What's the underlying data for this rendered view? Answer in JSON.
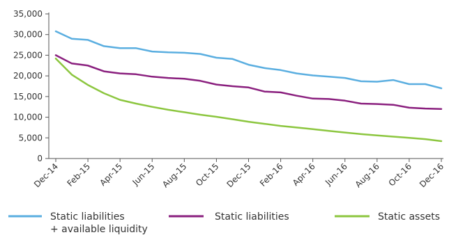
{
  "chart_data": {
    "type": "line",
    "title": "",
    "xlabel": "",
    "ylabel": "",
    "ylim": [
      0,
      35000
    ],
    "yticks": [
      0,
      5000,
      10000,
      15000,
      20000,
      25000,
      30000,
      35000
    ],
    "ytick_labels": [
      "0",
      "5,000",
      "10,000",
      "15,000",
      "20,000",
      "25,000",
      "30,000",
      "35,000"
    ],
    "x": [
      "Dec-14",
      "Jan-15",
      "Feb-15",
      "Mar-15",
      "Apr-15",
      "May-15",
      "Jun-15",
      "Jul-15",
      "Aug-15",
      "Sep-15",
      "Oct-15",
      "Nov-15",
      "Dec-15",
      "Jan-16",
      "Feb-16",
      "Mar-16",
      "Apr-16",
      "May-16",
      "Jun-16",
      "Jul-16",
      "Aug-16",
      "Sep-16",
      "Oct-16",
      "Nov-16",
      "Dec-16"
    ],
    "xtick_labels": [
      "Dec-14",
      "Feb-15",
      "Apr-15",
      "Jun-15",
      "Aug-15",
      "Oct-15",
      "Dec-15",
      "Feb-16",
      "Apr-16",
      "Jun-16",
      "Aug-16",
      "Oct-16",
      "Dec-16"
    ],
    "grid": false,
    "legend_position": "bottom",
    "series": [
      {
        "name": "Static liabilities\n+ available liquidity",
        "color": "#5aaee0",
        "values": [
          30800,
          29000,
          28700,
          27200,
          26700,
          26700,
          25900,
          25700,
          25600,
          25300,
          24400,
          24100,
          22700,
          21900,
          21400,
          20600,
          20100,
          19800,
          19500,
          18700,
          18600,
          19000,
          18000,
          18000,
          17000
        ]
      },
      {
        "name": "Static liabilities",
        "color": "#8a1f7e",
        "values": [
          25000,
          23000,
          22500,
          21100,
          20600,
          20400,
          19800,
          19500,
          19300,
          18800,
          17900,
          17500,
          17200,
          16200,
          16000,
          15200,
          14500,
          14400,
          14000,
          13300,
          13200,
          13000,
          12300,
          12100,
          12000
        ]
      },
      {
        "name": "Static assets",
        "color": "#8cc63f",
        "values": [
          24200,
          20300,
          17800,
          15800,
          14200,
          13300,
          12500,
          11800,
          11200,
          10600,
          10100,
          9500,
          8900,
          8400,
          7900,
          7500,
          7100,
          6700,
          6300,
          5900,
          5600,
          5300,
          5000,
          4700,
          4200
        ]
      }
    ]
  }
}
